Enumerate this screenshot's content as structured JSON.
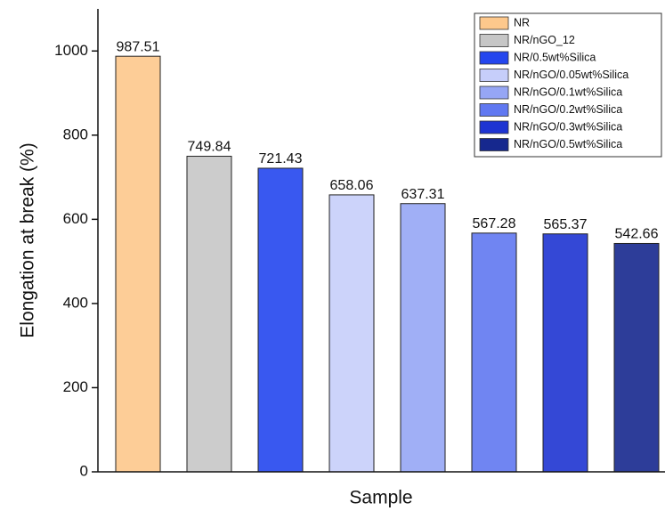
{
  "chart_data": {
    "type": "bar",
    "y_label": "Elongation at break (%)",
    "x_label": "Sample",
    "ylim": [
      0,
      1100
    ],
    "yticks": [
      0,
      200,
      400,
      600,
      800,
      1000
    ],
    "series": [
      {
        "name": "NR",
        "color": "#fdc88c",
        "values": [
          987.51
        ]
      },
      {
        "name": "NR/nGO_12",
        "color": "#c6c6c6",
        "values": [
          749.84
        ]
      },
      {
        "name": "NR/0.5wt%Silica",
        "color": "#2446ee",
        "values": [
          721.43
        ]
      },
      {
        "name": "NR/nGO/0.05wt%Silica",
        "color": "#c6cefa",
        "values": [
          658.06
        ]
      },
      {
        "name": "NR/nGO/0.1wt%Silica",
        "color": "#96a6f5",
        "values": [
          637.31
        ]
      },
      {
        "name": "NR/nGO/0.2wt%Silica",
        "color": "#6078f1",
        "values": [
          567.28
        ]
      },
      {
        "name": "NR/nGO/0.3wt%Silica",
        "color": "#1e34d2",
        "values": [
          565.37
        ]
      },
      {
        "name": "NR/nGO/0.5wt%Silica",
        "color": "#16288e",
        "values": [
          542.66
        ]
      }
    ]
  }
}
